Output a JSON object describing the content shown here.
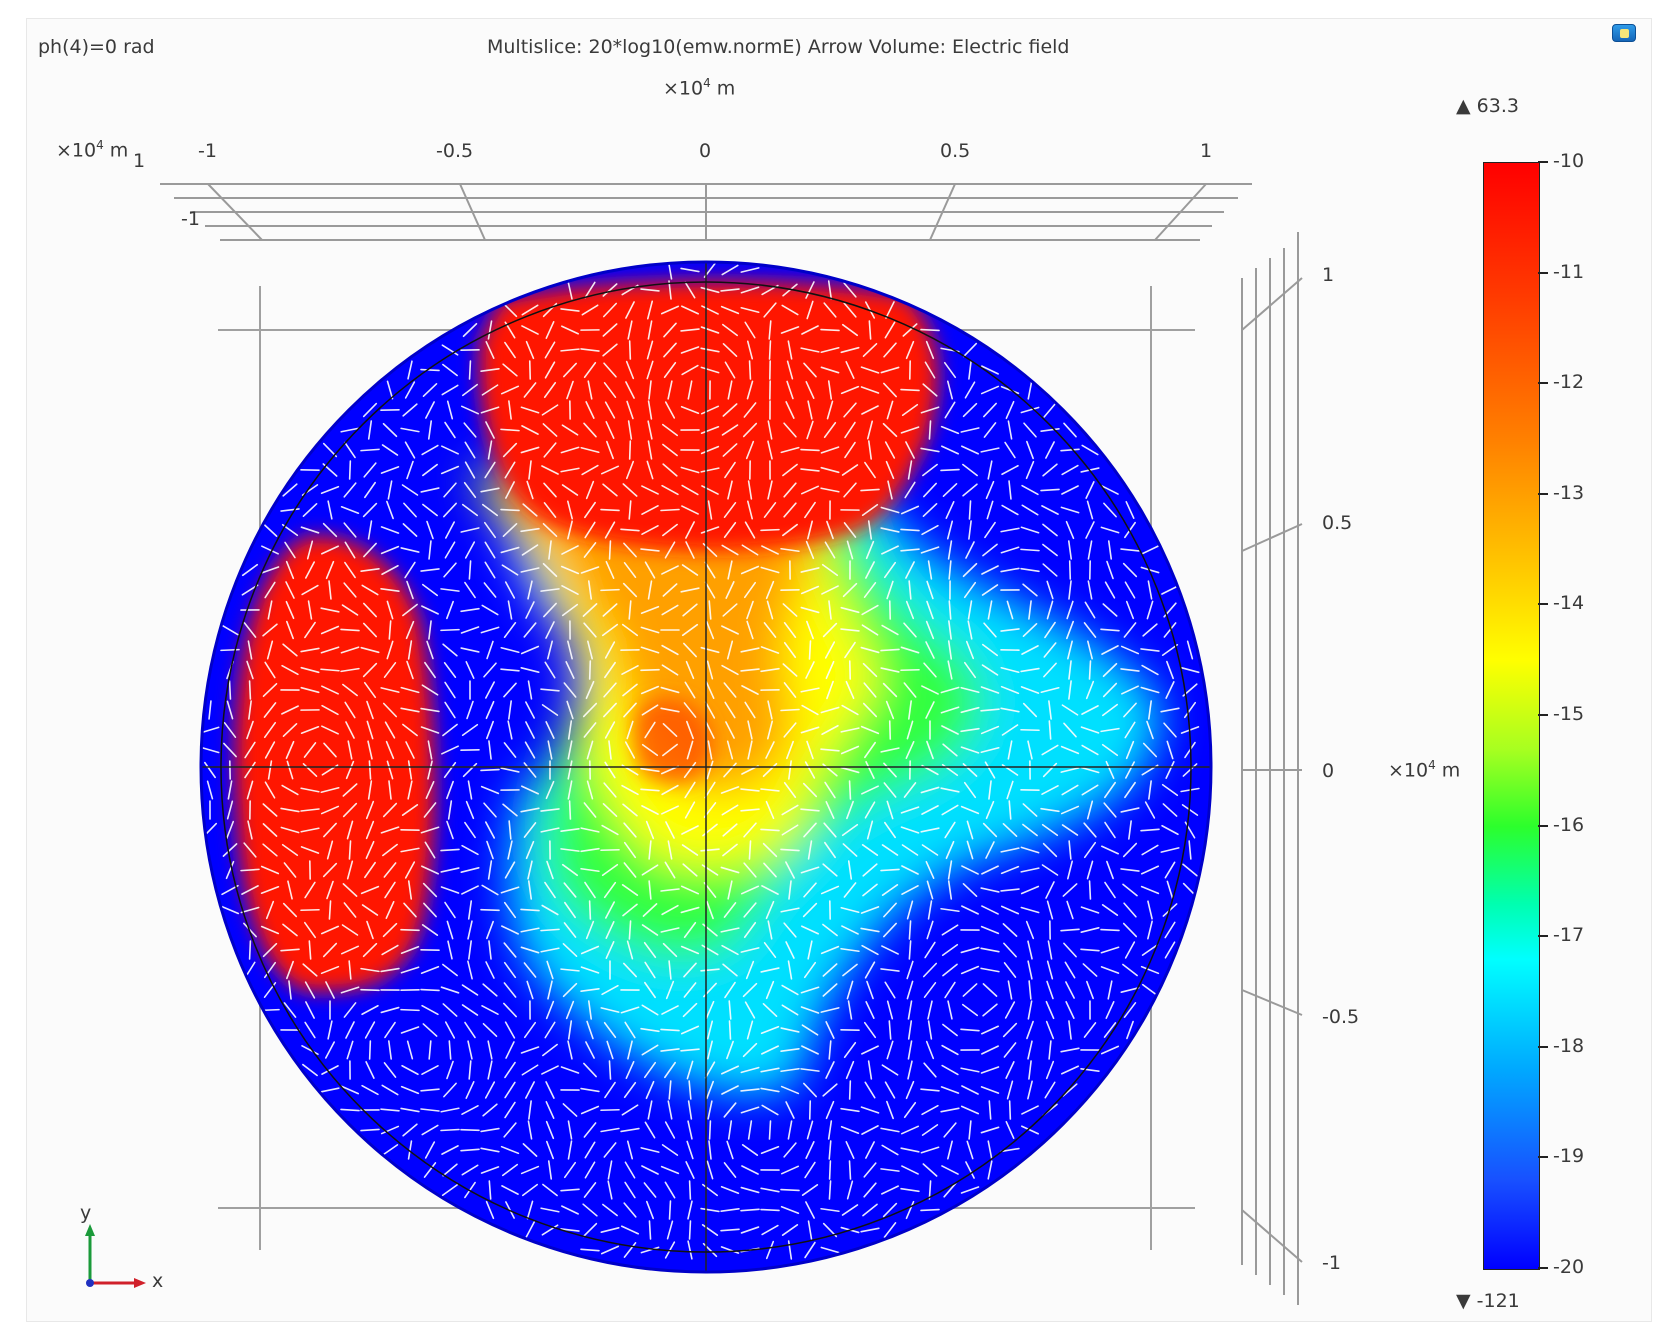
{
  "header": {
    "phase_label": "ph(4)=0 rad",
    "title": "Multislice: 20*log10(emw.normE)  Arrow Volume: Electric field"
  },
  "axes": {
    "top_exponent": "×10",
    "top_exponent_power": "4",
    "top_exponent_unit": " m",
    "left_exponent": "×10",
    "left_exponent_power": "4",
    "left_exponent_unit": " m",
    "left_stray_tick": "1",
    "side_exponent": "×10",
    "side_exponent_power": "4",
    "side_exponent_unit": " m",
    "x_ticks": [
      "-1",
      "-0.5",
      "0",
      "0.5",
      "1"
    ],
    "z_tick": "-1",
    "y_ticks": [
      "1",
      "0.5",
      "0",
      "-0.5",
      "-1"
    ]
  },
  "triad": {
    "y_label": "y",
    "x_label": "x",
    "y_color": "#1a9a3a",
    "x_color": "#d0202a",
    "z_color": "#2030c0"
  },
  "colorbar": {
    "max_marker": "▲ 63.3",
    "min_marker": "▼ -121",
    "ticks": [
      "-10",
      "-11",
      "-12",
      "-13",
      "-14",
      "-15",
      "-16",
      "-17",
      "-18",
      "-19",
      "-20"
    ],
    "colormap": "rainbow",
    "range": [
      -20,
      -10
    ]
  },
  "colors": {
    "background": "#0000ff",
    "high": "#ff0000",
    "arrows": "#ffffff"
  }
}
